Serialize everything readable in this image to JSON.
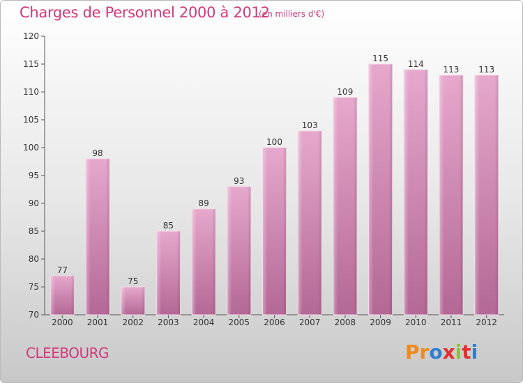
{
  "header": {
    "title": "Charges de Personnel 2000 à 2012",
    "subtitle": "(en milliers d'€)"
  },
  "footer": {
    "commune": "CLEEBOURG",
    "logo_text": "Proxiti"
  },
  "colors": {
    "title": "#d2387a",
    "bar_top": "#e6a8cc",
    "bar_bottom": "#b86c98",
    "logo": [
      "#f08a1c",
      "#f08a1c",
      "#2f7fd0",
      "#e23030",
      "#8bc33a",
      "#e23030",
      "#2f7fd0"
    ]
  },
  "chart_data": {
    "type": "bar",
    "title": "Charges de Personnel 2000 à 2012",
    "subtitle": "(en milliers d'€)",
    "categories": [
      "2000",
      "2001",
      "2002",
      "2003",
      "2004",
      "2005",
      "2006",
      "2007",
      "2008",
      "2009",
      "2010",
      "2011",
      "2012"
    ],
    "values": [
      77,
      98,
      75,
      85,
      89,
      93,
      100,
      103,
      109,
      115,
      114,
      113,
      113
    ],
    "ylim": [
      70,
      120
    ],
    "yticks": [
      70,
      75,
      80,
      85,
      90,
      95,
      100,
      105,
      110,
      115,
      120
    ],
    "xlabel": "",
    "ylabel": "",
    "grid": false,
    "data_labels": true
  }
}
